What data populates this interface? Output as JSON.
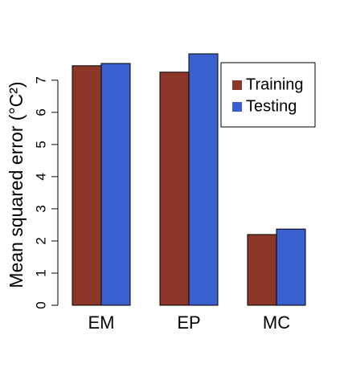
{
  "chart_data": {
    "type": "bar",
    "y_label": "Mean squared error (°C²)",
    "categories": [
      "EM",
      "EP",
      "MC"
    ],
    "series": [
      {
        "name": "Training",
        "color": "#8b3628",
        "values": [
          7.45,
          7.25,
          2.2
        ]
      },
      {
        "name": "Testing",
        "color": "#3a60d0",
        "values": [
          7.52,
          7.82,
          2.37
        ]
      }
    ],
    "ylim": [
      0,
      7.82
    ],
    "yticks": [
      0,
      1,
      2,
      3,
      4,
      5,
      6,
      7
    ],
    "legend": "top-right"
  }
}
